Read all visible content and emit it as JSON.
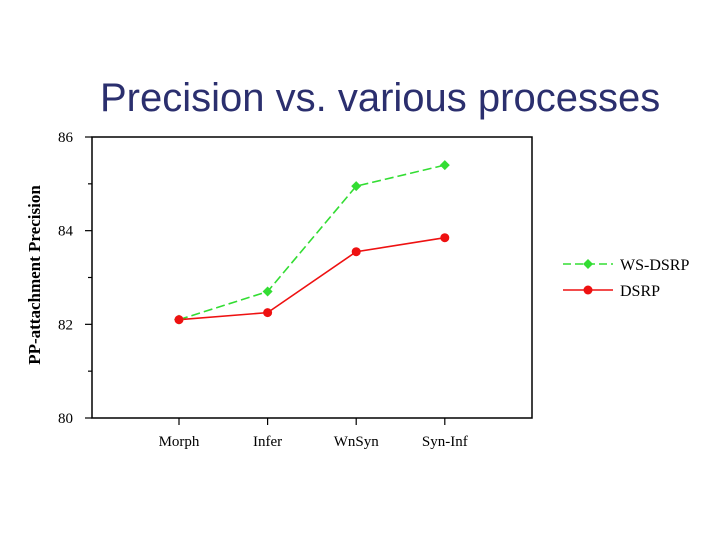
{
  "slide": {
    "title": "Precision vs. various processes"
  },
  "chart_data": {
    "type": "line",
    "title": "Precision vs. various processes",
    "xlabel": "",
    "ylabel": "PP-attachment Precision",
    "categories": [
      "Morph",
      "Infer",
      "WnSyn",
      "Syn-Inf"
    ],
    "ylim": [
      80,
      86
    ],
    "yticks": [
      80,
      82,
      84,
      86
    ],
    "grid": false,
    "legend_position": "right",
    "series": [
      {
        "name": "WS-DSRP",
        "values": [
          82.1,
          82.7,
          84.95,
          85.4
        ],
        "color": "#33dd33",
        "dash": "dashed",
        "marker": "diamond"
      },
      {
        "name": "DSRP",
        "values": [
          82.1,
          82.25,
          83.55,
          83.85
        ],
        "color": "#ee1111",
        "dash": "solid",
        "marker": "circle"
      }
    ]
  }
}
